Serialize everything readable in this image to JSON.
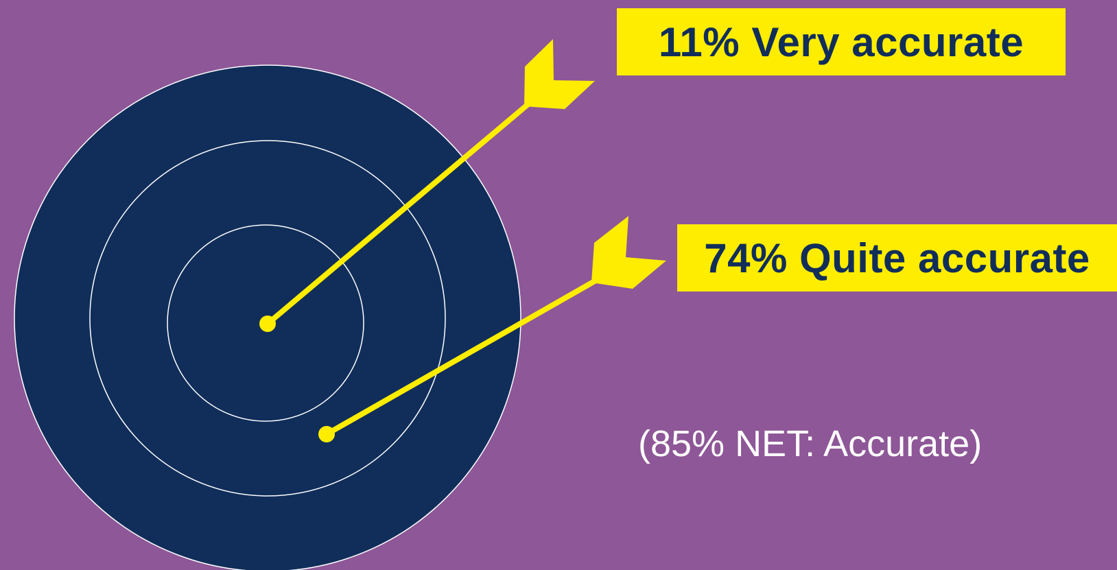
{
  "colors": {
    "background": "#8e5797",
    "target_fill": "#112e5a",
    "target_rings": "#ffffff",
    "arrows": "#ffed00",
    "label_fill": "#ffed00",
    "label_text": "#112e5a",
    "net_text": "#ffffff"
  },
  "target": {
    "rings": 3,
    "name": "target-icon"
  },
  "arrows": [
    {
      "name": "arrow-very-accurate",
      "hit": "bullseye",
      "label": "11% Very accurate"
    },
    {
      "name": "arrow-quite-accurate",
      "hit": "second-ring",
      "label": "74% Quite accurate"
    }
  ],
  "net": {
    "text": "(85% NET: Accurate)"
  }
}
